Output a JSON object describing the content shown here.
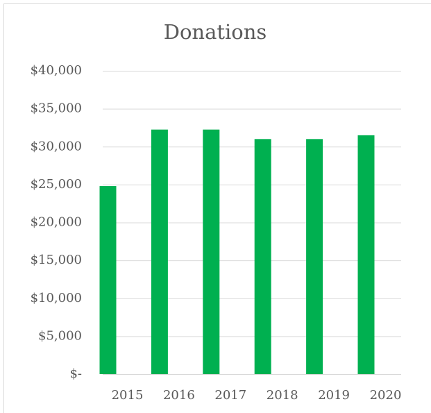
{
  "chart_data": {
    "type": "bar",
    "title": "Donations",
    "categories": [
      "2015",
      "2016",
      "2017",
      "2018",
      "2019",
      "2020"
    ],
    "values": [
      24800,
      32250,
      32250,
      31000,
      31000,
      31500
    ],
    "color": "#00b050",
    "ylim": [
      0,
      40000
    ],
    "yticks": [
      {
        "value": 0,
        "label": "$-"
      },
      {
        "value": 5000,
        "label": "$5,000"
      },
      {
        "value": 10000,
        "label": "$10,000"
      },
      {
        "value": 15000,
        "label": "$15,000"
      },
      {
        "value": 20000,
        "label": "$20,000"
      },
      {
        "value": 25000,
        "label": "$25,000"
      },
      {
        "value": 30000,
        "label": "$30,000"
      },
      {
        "value": 35000,
        "label": "$35,000"
      },
      {
        "value": 40000,
        "label": "$40,000"
      }
    ],
    "grid": true
  }
}
